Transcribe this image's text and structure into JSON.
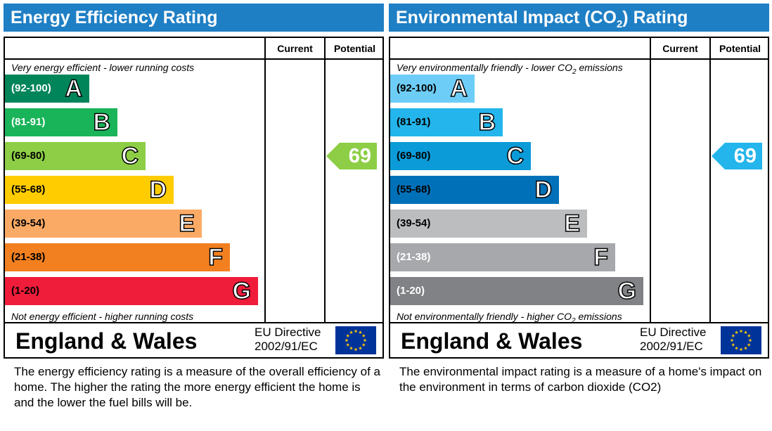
{
  "panels": [
    {
      "id": "energy",
      "title": "Energy Efficiency Rating",
      "col_current": "Current",
      "col_potential": "Potential",
      "top_caption": "Very energy efficient - lower running costs",
      "bottom_caption": "Not energy efficient - higher running costs",
      "region": "England & Wales",
      "directive_line1": "EU Directive",
      "directive_line2": "2002/91/EC",
      "description": "The energy efficiency rating is a measure of the overall efficiency of a home.  The higher the rating the more energy efficient the home is and the lower the fuel bills will be."
    },
    {
      "id": "environmental",
      "title_before": "Environmental Impact (CO",
      "title_sub": "2",
      "title_after": ") Rating",
      "col_current": "Current",
      "col_potential": "Potential",
      "top_caption_before": "Very environmentally friendly - lower CO",
      "top_caption_sub": "2",
      "top_caption_after": " emissions",
      "bottom_caption_before": "Not environmentally friendly - higher CO",
      "bottom_caption_sub": "2",
      "bottom_caption_after": " emissions",
      "region": "England & Wales",
      "directive_line1": "EU Directive",
      "directive_line2": "2002/91/EC",
      "description": "The environmental impact rating is a measure of a home's impact on the environment in terms of carbon dioxide (CO2)"
    }
  ],
  "chart_data": [
    {
      "type": "bar",
      "categories": [
        "A",
        "B",
        "C",
        "D",
        "E",
        "F",
        "G"
      ],
      "ranges": [
        "(92-100)",
        "(81-91)",
        "(69-80)",
        "(55-68)",
        "(39-54)",
        "(21-38)",
        "(1-20)"
      ],
      "colors": [
        "#00855a",
        "#19b459",
        "#8dce46",
        "#ffcc00",
        "#fbaa65",
        "#f28020",
        "#ef1c3a"
      ],
      "range_text_colors": [
        "#ffffff",
        "#ffffff",
        "#000000",
        "#000000",
        "#000000",
        "#000000",
        "#000000"
      ],
      "current": null,
      "potential": 69,
      "potential_band": "C",
      "potential_color": "#8dce46"
    },
    {
      "type": "bar",
      "categories": [
        "A",
        "B",
        "C",
        "D",
        "E",
        "F",
        "G"
      ],
      "ranges": [
        "(92-100)",
        "(81-91)",
        "(69-80)",
        "(55-68)",
        "(39-54)",
        "(21-38)",
        "(1-20)"
      ],
      "colors": [
        "#6dcdf6",
        "#23b5eb",
        "#0b9bd8",
        "#0071b9",
        "#bbbdbf",
        "#a6a8ab",
        "#808285"
      ],
      "range_text_colors": [
        "#000000",
        "#000000",
        "#000000",
        "#000000",
        "#000000",
        "#ffffff",
        "#ffffff"
      ],
      "current": null,
      "potential": 69,
      "potential_band": "C",
      "potential_color": "#23b5eb"
    }
  ]
}
